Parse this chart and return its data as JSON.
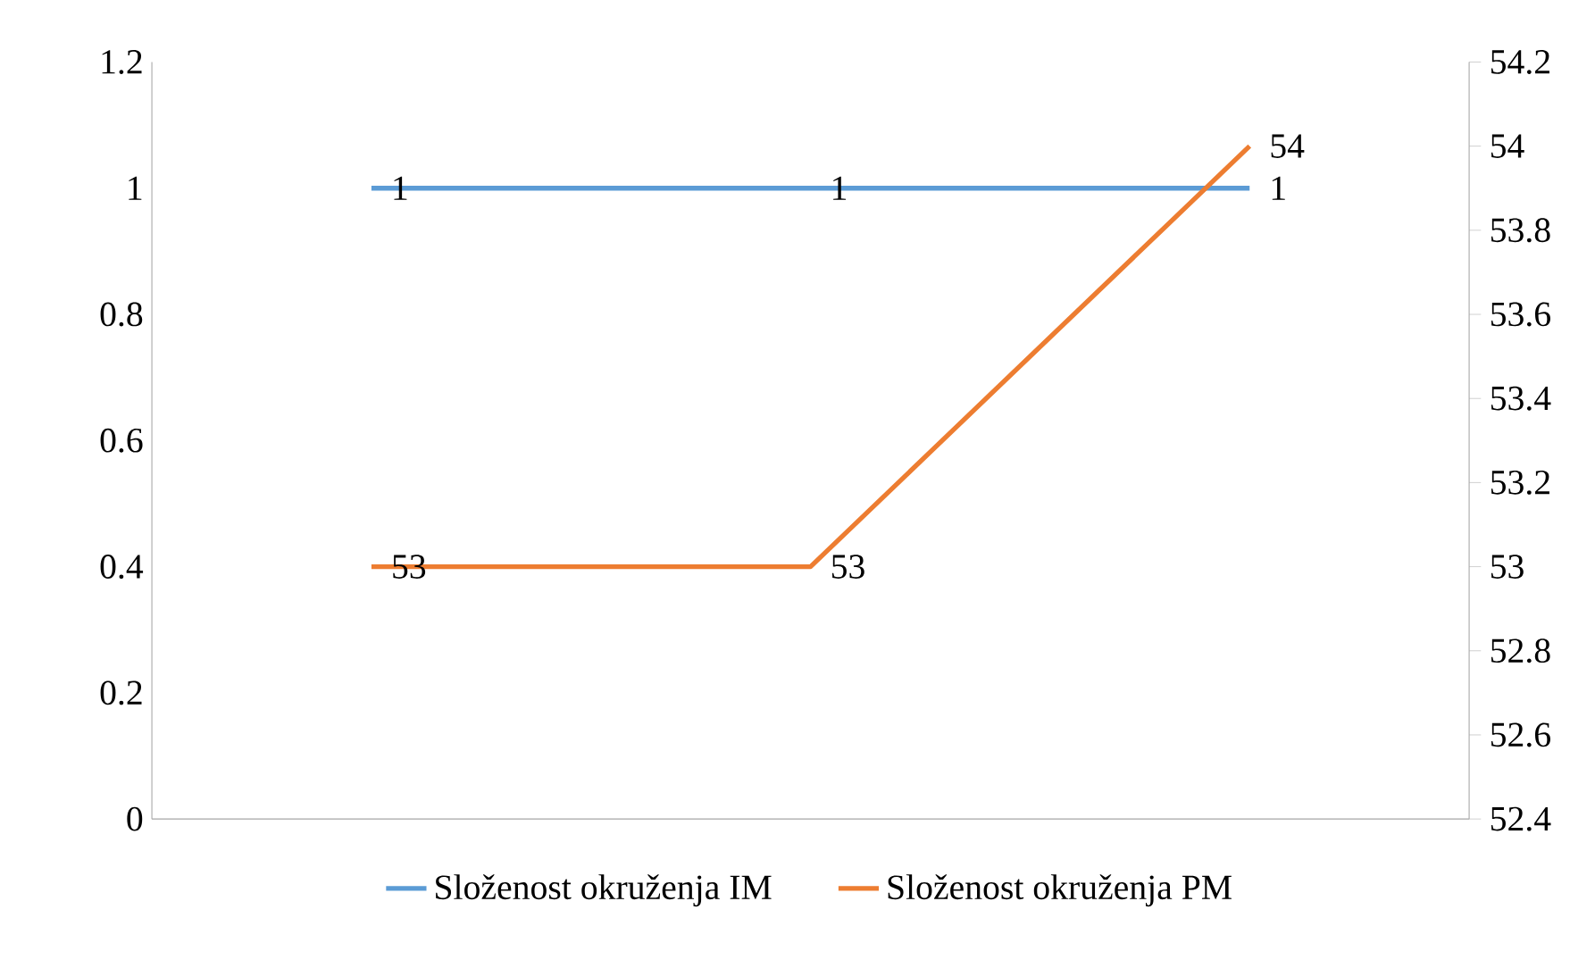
{
  "chart_data": {
    "type": "line",
    "categories": [
      null,
      null,
      null
    ],
    "series": [
      {
        "name": "Složenost okruženja IM",
        "color": "#5b9bd5",
        "values": [
          1,
          1,
          1
        ]
      },
      {
        "name": "Složenost okruženja PM",
        "color": "#ed7d31",
        "values": [
          53,
          53,
          54
        ],
        "axis": "y2"
      }
    ],
    "ylim": [
      0,
      1.2
    ],
    "yticks": [
      0,
      0.2,
      0.4,
      0.6,
      0.8,
      1,
      1.2
    ],
    "y2lim": [
      52.4,
      54.2
    ],
    "y2ticks": [
      52.4,
      52.6,
      52.8,
      53,
      53.2,
      53.4,
      53.6,
      53.8,
      54,
      54.2
    ],
    "data_labels": true,
    "legend": "bottom"
  }
}
